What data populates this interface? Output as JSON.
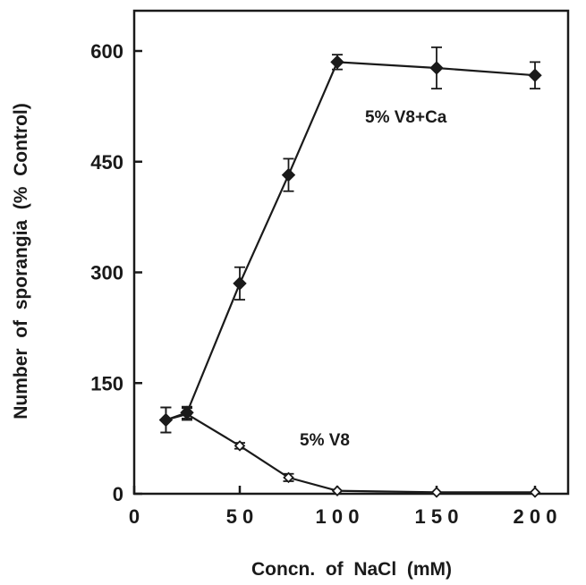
{
  "chart_data": {
    "type": "line",
    "title": "",
    "xlabel": "Concn.  of  NaCl  (mM)",
    "ylabel": "Number  of  sporangia  (%  Control)",
    "x_ticks": [
      {
        "value": 0,
        "label": "0"
      },
      {
        "value": 50,
        "label": "5 0"
      },
      {
        "value": 100,
        "label": "1 0 0"
      },
      {
        "value": 150,
        "label": "1 5 0"
      },
      {
        "value": 200,
        "label": "2 0 0"
      }
    ],
    "y_ticks": [
      {
        "value": 0,
        "label": "0"
      },
      {
        "value": 150,
        "label": "150"
      },
      {
        "value": 300,
        "label": "300"
      },
      {
        "value": 450,
        "label": "450"
      },
      {
        "value": 600,
        "label": "600"
      }
    ],
    "ylim": [
      0,
      600
    ],
    "grid": false,
    "legend": "none",
    "series": [
      {
        "name": "5%   V8+Ca",
        "marker": "filled-diamond",
        "color": "#1a1a1a",
        "points": [
          {
            "x": 15,
            "y": 100,
            "err": 17
          },
          {
            "x": 25,
            "y": 110,
            "err": 8
          },
          {
            "x": 50,
            "y": 285,
            "err": 22
          },
          {
            "x": 75,
            "y": 432,
            "err": 22
          },
          {
            "x": 100,
            "y": 585,
            "err": 10
          },
          {
            "x": 150,
            "y": 577,
            "err": 28
          },
          {
            "x": 200,
            "y": 567,
            "err": 18
          }
        ]
      },
      {
        "name": "5%   V8",
        "marker": "open-diamond",
        "color": "#1a1a1a",
        "points": [
          {
            "x": 15,
            "y": 100,
            "err": 17
          },
          {
            "x": 25,
            "y": 108,
            "err": 8
          },
          {
            "x": 50,
            "y": 65,
            "err": 4
          },
          {
            "x": 75,
            "y": 22,
            "err": 5
          },
          {
            "x": 100,
            "y": 4,
            "err": 0
          },
          {
            "x": 150,
            "y": 2,
            "err": 0
          },
          {
            "x": 200,
            "y": 2,
            "err": 0
          }
        ]
      }
    ]
  }
}
